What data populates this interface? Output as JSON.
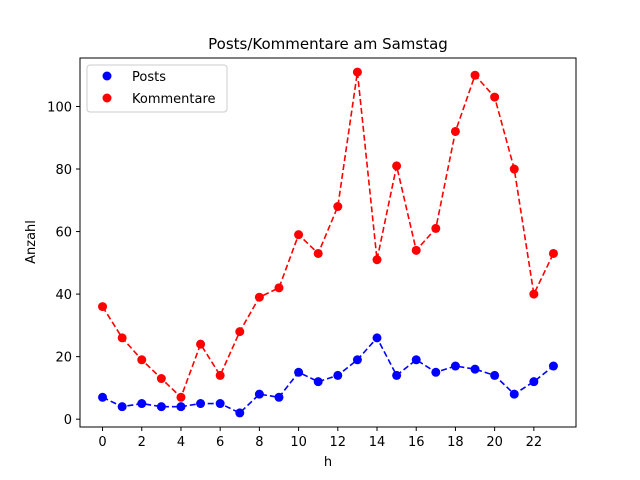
{
  "chart_data": {
    "type": "line",
    "title": "Posts/Kommentare am Samstag",
    "xlabel": "h",
    "ylabel": "Anzahl",
    "x": [
      0,
      1,
      2,
      3,
      4,
      5,
      6,
      7,
      8,
      9,
      10,
      11,
      12,
      13,
      14,
      15,
      16,
      17,
      18,
      19,
      20,
      21,
      22,
      23
    ],
    "xlim": [
      -1.15,
      24.15
    ],
    "ylim": [
      -2.5,
      115.5
    ],
    "xticks": [
      0,
      2,
      4,
      6,
      8,
      10,
      12,
      14,
      16,
      18,
      20,
      22
    ],
    "yticks": [
      0,
      20,
      40,
      60,
      80,
      100
    ],
    "grid": false,
    "legend_position": "top-left",
    "series": [
      {
        "name": "Posts",
        "color": "#0000ff",
        "values": [
          7,
          4,
          5,
          4,
          4,
          5,
          5,
          2,
          8,
          7,
          15,
          12,
          14,
          19,
          26,
          14,
          19,
          15,
          17,
          16,
          14,
          8,
          12,
          17
        ]
      },
      {
        "name": "Kommentare",
        "color": "#ff0000",
        "values": [
          36,
          26,
          19,
          13,
          7,
          24,
          14,
          28,
          39,
          42,
          59,
          53,
          68,
          111,
          51,
          81,
          54,
          61,
          92,
          110,
          103,
          80,
          40,
          53
        ]
      }
    ]
  }
}
